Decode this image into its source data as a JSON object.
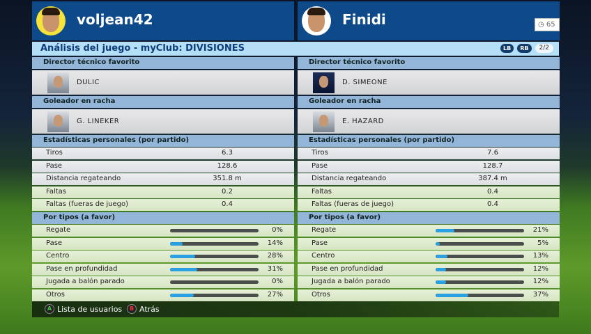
{
  "title": "Análisis del juego - myClub: DIVISIONES",
  "nav": {
    "lb": "LB",
    "rb": "RB",
    "page": "2/2"
  },
  "timer": "65",
  "sections": {
    "manager": "Director técnico favorito",
    "scorer": "Goleador en racha",
    "stats": "Estadísticas personales (por partido)",
    "types": "Por tipos (a favor)"
  },
  "colors": {
    "header": "#0e4a8a",
    "accent_bar": "#2aa0e0"
  },
  "players": [
    {
      "name": "voljean42",
      "avatar_bg": "#f5e23a",
      "manager": "DULIC",
      "scorer": "G. LINEKER",
      "stats": [
        {
          "label": "Tiros",
          "value": "6.3"
        },
        {
          "label": "Pase",
          "value": "128.6"
        },
        {
          "label": "Distancia regateando",
          "value": "351.8 m"
        },
        {
          "label": "Faltas",
          "value": "0.2"
        },
        {
          "label": "Faltas (fueras de juego)",
          "value": "0.4"
        }
      ],
      "types": [
        {
          "label": "Regate",
          "pct": "0%",
          "value": 0
        },
        {
          "label": "Pase",
          "pct": "14%",
          "value": 14
        },
        {
          "label": "Centro",
          "pct": "28%",
          "value": 28
        },
        {
          "label": "Pase en profundidad",
          "pct": "31%",
          "value": 31
        },
        {
          "label": "Jugada a balón parado",
          "pct": "0%",
          "value": 0
        },
        {
          "label": "Otros",
          "pct": "27%",
          "value": 27
        }
      ]
    },
    {
      "name": "Finidi",
      "avatar_bg": "#ffffff",
      "manager": "D. SIMEONE",
      "scorer": "E. HAZARD",
      "stats": [
        {
          "label": "Tiros",
          "value": "7.6"
        },
        {
          "label": "Pase",
          "value": "128.7"
        },
        {
          "label": "Distancia regateando",
          "value": "387.4 m"
        },
        {
          "label": "Faltas",
          "value": "0.4"
        },
        {
          "label": "Faltas (fueras de juego)",
          "value": "0.4"
        }
      ],
      "types": [
        {
          "label": "Regate",
          "pct": "21%",
          "value": 21
        },
        {
          "label": "Pase",
          "pct": "5%",
          "value": 5
        },
        {
          "label": "Centro",
          "pct": "13%",
          "value": 13
        },
        {
          "label": "Pase en profundidad",
          "pct": "12%",
          "value": 12
        },
        {
          "label": "Jugada a balón parado",
          "pct": "12%",
          "value": 12
        },
        {
          "label": "Otros",
          "pct": "37%",
          "value": 37
        }
      ]
    }
  ],
  "footer": {
    "a_key": "A",
    "a_label": "Lista de usuarios",
    "b_key": "B",
    "b_label": "Atrás"
  }
}
